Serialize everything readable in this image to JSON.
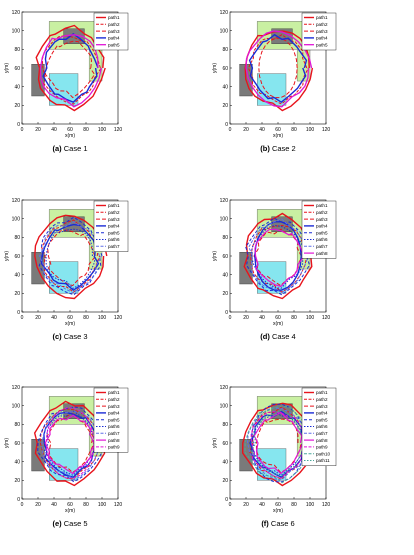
{
  "colors": {
    "path1": "#e8141c",
    "path2": "#e8141c",
    "path3": "#e8141c",
    "blue": "#1a2bd6",
    "light_blue": "#5f6fe8",
    "magenta": "#e015d6",
    "teal": "#4aa79a",
    "green_region": "#c9f0a2",
    "cyan_region": "#86e6ef",
    "obstacle": "#7a7a7a"
  },
  "chart_data": [
    {
      "type": "line",
      "caption_letter": "(a)",
      "caption_text": "Case 1",
      "xlabel": "x(m)",
      "ylabel": "y(m)",
      "xlim": [
        0,
        120
      ],
      "ylim": [
        0,
        120
      ],
      "xticks": [
        "0",
        "20",
        "40",
        "60",
        "80",
        "100",
        "120"
      ],
      "yticks": [
        "0",
        "20",
        "40",
        "60",
        "80",
        "100",
        "120"
      ],
      "legend_placement": "top-right",
      "series": [
        {
          "name": "path1"
        },
        {
          "name": "path2"
        },
        {
          "name": "path3"
        },
        {
          "name": "path4"
        },
        {
          "name": "path5"
        }
      ]
    },
    {
      "type": "line",
      "caption_letter": "(b)",
      "caption_text": "Case 2",
      "xlabel": "x(m)",
      "ylabel": "y(m)",
      "xlim": [
        0,
        120
      ],
      "ylim": [
        0,
        120
      ],
      "xticks": [
        "0",
        "20",
        "40",
        "60",
        "80",
        "100",
        "120"
      ],
      "yticks": [
        "0",
        "20",
        "40",
        "60",
        "80",
        "100",
        "120"
      ],
      "legend_placement": "top-right",
      "series": [
        {
          "name": "path1"
        },
        {
          "name": "path2"
        },
        {
          "name": "path3"
        },
        {
          "name": "path4"
        },
        {
          "name": "path5"
        }
      ]
    },
    {
      "type": "line",
      "caption_letter": "(c)",
      "caption_text": "Case 3",
      "xlabel": "x(m)",
      "ylabel": "y(m)",
      "xlim": [
        0,
        120
      ],
      "ylim": [
        0,
        120
      ],
      "xticks": [
        "0",
        "20",
        "40",
        "60",
        "80",
        "100",
        "120"
      ],
      "yticks": [
        "0",
        "20",
        "40",
        "60",
        "80",
        "100",
        "120"
      ],
      "legend_placement": "top-right",
      "series": [
        {
          "name": "path1"
        },
        {
          "name": "path2"
        },
        {
          "name": "path3"
        },
        {
          "name": "path4"
        },
        {
          "name": "path5"
        },
        {
          "name": "path6"
        },
        {
          "name": "path7"
        }
      ]
    },
    {
      "type": "line",
      "caption_letter": "(d)",
      "caption_text": "Case 4",
      "xlabel": "x(m)",
      "ylabel": "y(m)",
      "xlim": [
        0,
        120
      ],
      "ylim": [
        0,
        120
      ],
      "xticks": [
        "0",
        "20",
        "40",
        "60",
        "80",
        "100",
        "120"
      ],
      "yticks": [
        "0",
        "20",
        "40",
        "60",
        "80",
        "100",
        "120"
      ],
      "legend_placement": "top-right",
      "series": [
        {
          "name": "path1"
        },
        {
          "name": "path2"
        },
        {
          "name": "path3"
        },
        {
          "name": "path4"
        },
        {
          "name": "path5"
        },
        {
          "name": "path6"
        },
        {
          "name": "path7"
        },
        {
          "name": "path8"
        }
      ]
    },
    {
      "type": "line",
      "caption_letter": "(e)",
      "caption_text": "Case 5",
      "xlabel": "x(m)",
      "ylabel": "y(m)",
      "xlim": [
        0,
        120
      ],
      "ylim": [
        0,
        120
      ],
      "xticks": [
        "0",
        "20",
        "40",
        "60",
        "80",
        "100",
        "120"
      ],
      "yticks": [
        "0",
        "20",
        "40",
        "60",
        "80",
        "100",
        "120"
      ],
      "legend_placement": "top-right",
      "series": [
        {
          "name": "path1"
        },
        {
          "name": "path2"
        },
        {
          "name": "path3"
        },
        {
          "name": "path4"
        },
        {
          "name": "path5"
        },
        {
          "name": "path6"
        },
        {
          "name": "path7"
        },
        {
          "name": "path8"
        },
        {
          "name": "path9"
        }
      ]
    },
    {
      "type": "line",
      "caption_letter": "(f)",
      "caption_text": "Case 6",
      "xlabel": "x(m)",
      "ylabel": "y(m)",
      "xlim": [
        0,
        120
      ],
      "ylim": [
        0,
        120
      ],
      "xticks": [
        "0",
        "20",
        "40",
        "60",
        "80",
        "100",
        "120"
      ],
      "yticks": [
        "0",
        "20",
        "40",
        "60",
        "80",
        "100",
        "120"
      ],
      "legend_placement": "top-right",
      "series": [
        {
          "name": "path1"
        },
        {
          "name": "path2"
        },
        {
          "name": "path3"
        },
        {
          "name": "path4"
        },
        {
          "name": "path5"
        },
        {
          "name": "path6"
        },
        {
          "name": "path7"
        },
        {
          "name": "path8"
        },
        {
          "name": "path9"
        },
        {
          "name": "path10"
        },
        {
          "name": "path11"
        }
      ]
    }
  ]
}
